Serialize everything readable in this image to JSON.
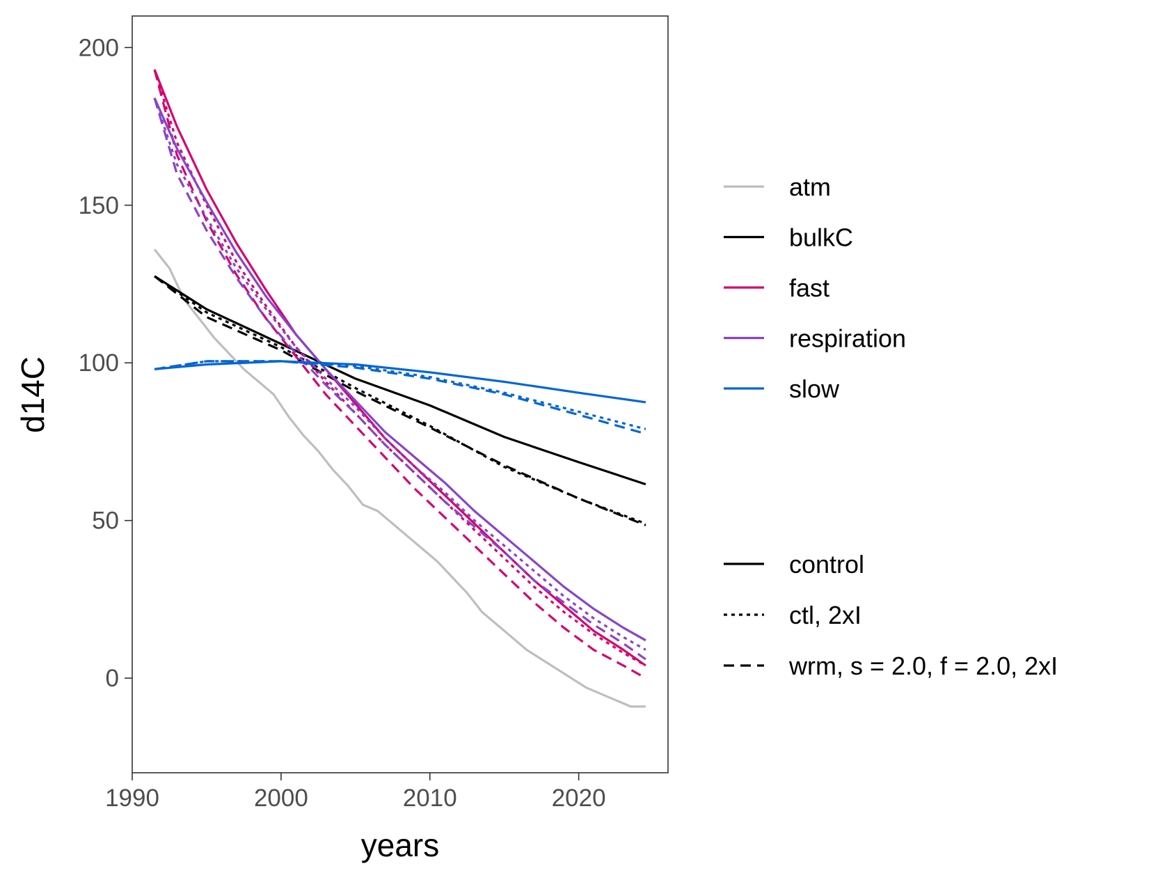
{
  "chart_data": {
    "type": "line",
    "xlabel": "years",
    "ylabel": "d14C",
    "xlim": [
      1990,
      2026
    ],
    "ylim": [
      -30,
      210
    ],
    "xticks": [
      1990,
      2000,
      2010,
      2020
    ],
    "yticks": [
      0,
      50,
      100,
      150,
      200
    ],
    "grid": false,
    "legend_position": "right",
    "color_legend": [
      {
        "name": "atm",
        "color": "#bebebe"
      },
      {
        "name": "bulkC",
        "color": "#000000"
      },
      {
        "name": "fast",
        "color": "#d6006e"
      },
      {
        "name": "respiration",
        "color": "#8844cc"
      },
      {
        "name": "slow",
        "color": "#0066d6"
      }
    ],
    "linetype_legend": [
      {
        "name": "control",
        "dash": "solid"
      },
      {
        "name": "ctl, 2xI",
        "dash": "dotted"
      },
      {
        "name": "wrm, s = 2.0, f = 2.0, 2xI",
        "dash": "dashed"
      }
    ],
    "series": [
      {
        "pool": "atm",
        "scenario": "control",
        "x": [
          1991.5,
          1992.5,
          1993.5,
          1994.5,
          1995.5,
          1996.5,
          1997.5,
          1998.5,
          1999.5,
          2000.5,
          2001.5,
          2002.5,
          2003.5,
          2004.5,
          2005.5,
          2006.5,
          2007.5,
          2008.5,
          2009.5,
          2010.5,
          2011.5,
          2012.5,
          2013.5,
          2014.5,
          2015.5,
          2016.5,
          2017.5,
          2018.5,
          2019.5,
          2020.5,
          2021.5,
          2022.5,
          2023.5,
          2024.5
        ],
        "y": [
          136,
          130,
          120,
          114,
          108,
          103,
          98,
          94,
          90,
          83,
          77,
          72,
          66,
          61,
          55,
          53,
          49,
          45,
          41,
          37,
          32,
          27,
          21,
          17,
          13,
          9,
          6,
          3,
          0,
          -3,
          -5,
          -7,
          -9,
          -9
        ]
      },
      {
        "pool": "bulkC",
        "scenario": "control",
        "x": [
          1991.5,
          1995,
          2000,
          2005,
          2010,
          2015,
          2020,
          2024.5
        ],
        "y": [
          127.5,
          117,
          106,
          95,
          86.5,
          76.5,
          68.5,
          61.5
        ]
      },
      {
        "pool": "bulkC",
        "scenario": "ctl, 2xI",
        "x": [
          1991.5,
          1995,
          2000,
          2005,
          2010,
          2015,
          2020,
          2024.5
        ],
        "y": [
          127.5,
          116,
          105,
          92,
          80,
          67,
          57,
          49
        ]
      },
      {
        "pool": "bulkC",
        "scenario": "wrm, s = 2.0, f = 2.0, 2xI",
        "x": [
          1991.5,
          1995,
          2000,
          2005,
          2010,
          2015,
          2020,
          2024.5
        ],
        "y": [
          127.5,
          114.5,
          104,
          91,
          79.5,
          67.5,
          57,
          48.5
        ]
      },
      {
        "pool": "fast",
        "scenario": "control",
        "x": [
          1991.5,
          1993,
          1995,
          1997,
          1999,
          2001,
          2003,
          2005,
          2007,
          2009,
          2011,
          2013,
          2015,
          2017,
          2019,
          2021,
          2023,
          2024.5
        ],
        "y": [
          193,
          175,
          155,
          138,
          123,
          109,
          98,
          87,
          76,
          67,
          58,
          49,
          40,
          31,
          23,
          15,
          9,
          4
        ]
      },
      {
        "pool": "fast",
        "scenario": "ctl, 2xI",
        "x": [
          1991.5,
          1993,
          1995,
          1997,
          1999,
          2001,
          2003,
          2005,
          2007,
          2009,
          2011,
          2013,
          2015,
          2017,
          2019,
          2021,
          2023,
          2024.5
        ],
        "y": [
          193,
          170,
          150,
          132,
          118,
          105,
          94,
          84,
          74,
          65,
          56,
          47,
          38,
          29,
          21,
          14,
          8,
          4
        ]
      },
      {
        "pool": "fast",
        "scenario": "wrm, s = 2.0, f = 2.0, 2xI",
        "x": [
          1991.5,
          1993,
          1995,
          1997,
          1999,
          2001,
          2003,
          2005,
          2007,
          2009,
          2011,
          2013,
          2015,
          2017,
          2019,
          2021,
          2023,
          2024.5
        ],
        "y": [
          193,
          166,
          145,
          128,
          114,
          102,
          90,
          80,
          70,
          60,
          51,
          42,
          33,
          24,
          16,
          9,
          4,
          0
        ]
      },
      {
        "pool": "respiration",
        "scenario": "control",
        "x": [
          1991.5,
          1993,
          1995,
          1997,
          1999,
          2001,
          2003,
          2005,
          2007,
          2009,
          2011,
          2013,
          2015,
          2017,
          2019,
          2021,
          2023,
          2024.5
        ],
        "y": [
          184,
          168,
          151,
          135,
          121,
          109,
          98,
          88,
          78,
          70,
          62,
          53,
          45,
          37,
          29,
          22,
          16,
          12
        ]
      },
      {
        "pool": "respiration",
        "scenario": "ctl, 2xI",
        "x": [
          1991.5,
          1993,
          1995,
          1997,
          1999,
          2001,
          2003,
          2005,
          2007,
          2009,
          2011,
          2013,
          2015,
          2017,
          2019,
          2021,
          2023,
          2024.5
        ],
        "y": [
          184,
          163,
          146,
          130,
          117,
          105,
          95,
          86,
          76,
          67,
          59,
          50,
          42,
          34,
          26,
          19,
          13,
          9
        ]
      },
      {
        "pool": "respiration",
        "scenario": "wrm, s = 2.0, f = 2.0, 2xI",
        "x": [
          1991.5,
          1993,
          1995,
          1997,
          1999,
          2001,
          2003,
          2005,
          2007,
          2009,
          2011,
          2013,
          2015,
          2017,
          2019,
          2021,
          2023,
          2024.5
        ],
        "y": [
          184,
          160,
          142,
          127,
          114,
          103,
          93,
          84,
          74,
          65,
          56,
          48,
          40,
          31,
          24,
          17,
          11,
          6
        ]
      },
      {
        "pool": "slow",
        "scenario": "control",
        "x": [
          1991.5,
          1995,
          2000,
          2005,
          2010,
          2015,
          2020,
          2024.5
        ],
        "y": [
          98,
          99.5,
          100.5,
          99.5,
          97,
          94,
          90.5,
          87.5
        ]
      },
      {
        "pool": "slow",
        "scenario": "ctl, 2xI",
        "x": [
          1991.5,
          1995,
          2000,
          2005,
          2010,
          2015,
          2020,
          2024.5
        ],
        "y": [
          98,
          100.5,
          100.5,
          99,
          95.5,
          90.5,
          84.5,
          79
        ]
      },
      {
        "pool": "slow",
        "scenario": "wrm, s = 2.0, f = 2.0, 2xI",
        "x": [
          1991.5,
          1995,
          2000,
          2005,
          2010,
          2015,
          2020,
          2024.5
        ],
        "y": [
          98,
          100.5,
          100.5,
          98.5,
          95,
          90,
          83.5,
          77.5
        ]
      }
    ]
  }
}
